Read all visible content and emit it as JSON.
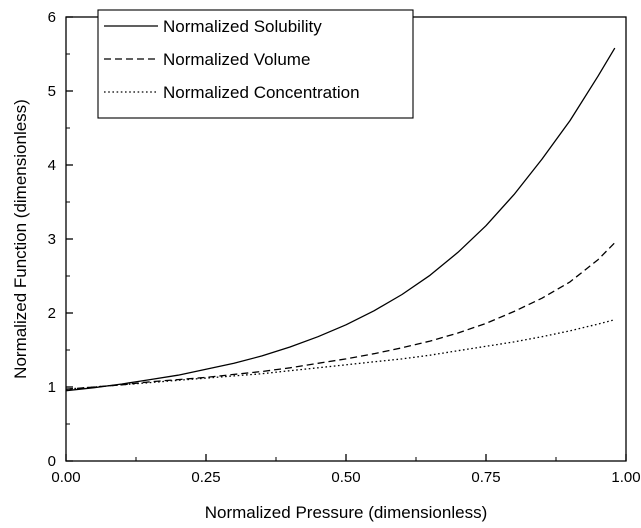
{
  "chart_data": {
    "type": "line",
    "xlabel": "Normalized Pressure (dimensionless)",
    "ylabel": "Normalized Function (dimensionless)",
    "xlim": [
      0.0,
      1.0
    ],
    "ylim": [
      0,
      6
    ],
    "x_ticks": [
      "0.00",
      "0.25",
      "0.50",
      "0.75",
      "1.00"
    ],
    "y_ticks": [
      "0",
      "1",
      "2",
      "3",
      "4",
      "5",
      "6"
    ],
    "grid": false,
    "legend_position": "top-left",
    "x": [
      0.0,
      0.05,
      0.1,
      0.15,
      0.2,
      0.25,
      0.3,
      0.35,
      0.4,
      0.45,
      0.5,
      0.55,
      0.6,
      0.65,
      0.7,
      0.75,
      0.8,
      0.85,
      0.9,
      0.95,
      0.98
    ],
    "series": [
      {
        "name": "Normalized Solubility",
        "style": "solid",
        "values": [
          0.95,
          0.99,
          1.04,
          1.1,
          1.16,
          1.24,
          1.32,
          1.42,
          1.54,
          1.68,
          1.84,
          2.03,
          2.25,
          2.51,
          2.82,
          3.18,
          3.6,
          4.08,
          4.6,
          5.2,
          5.58
        ]
      },
      {
        "name": "Normalized Volume",
        "style": "dashed",
        "values": [
          0.97,
          1.0,
          1.03,
          1.07,
          1.1,
          1.13,
          1.17,
          1.21,
          1.26,
          1.32,
          1.38,
          1.45,
          1.53,
          1.62,
          1.73,
          1.86,
          2.02,
          2.2,
          2.42,
          2.72,
          2.95
        ]
      },
      {
        "name": "Normalized Concentration",
        "style": "dotted",
        "values": [
          0.97,
          1.0,
          1.03,
          1.06,
          1.09,
          1.12,
          1.15,
          1.18,
          1.22,
          1.26,
          1.3,
          1.34,
          1.38,
          1.43,
          1.49,
          1.55,
          1.61,
          1.68,
          1.76,
          1.85,
          1.91
        ]
      }
    ]
  }
}
